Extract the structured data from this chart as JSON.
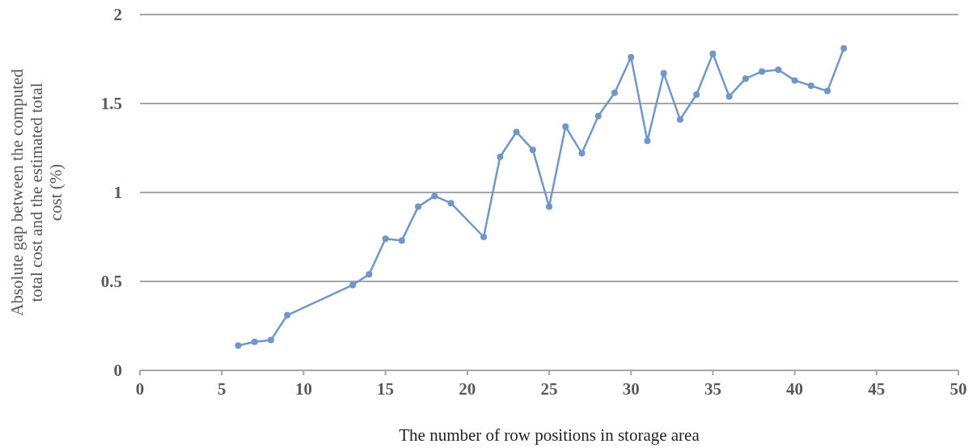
{
  "chart_data": {
    "type": "line",
    "xlabel": "The number of row positions in storage area",
    "ylabel": "Absolute gap between the computed total cost and the estimated total cost (%)",
    "series": [
      {
        "color": "#6f97c8",
        "x": [
          6,
          7,
          8,
          9,
          13,
          14,
          15,
          16,
          17,
          18,
          19,
          21,
          22,
          23,
          24,
          25,
          26,
          27,
          28,
          29,
          30,
          31,
          32,
          33,
          34,
          35,
          36,
          37,
          38,
          39,
          40,
          41,
          42,
          43
        ],
        "values": [
          0.14,
          0.16,
          0.17,
          0.31,
          0.48,
          0.54,
          0.74,
          0.73,
          0.92,
          0.98,
          0.94,
          0.75,
          1.2,
          1.34,
          1.24,
          0.92,
          1.37,
          1.22,
          1.43,
          1.56,
          1.76,
          1.29,
          1.67,
          1.41,
          1.55,
          1.78,
          1.54,
          1.64,
          1.68,
          1.69,
          1.63,
          1.6,
          1.57,
          1.81
        ]
      }
    ],
    "xlim": [
      0,
      50
    ],
    "xticks": [
      0,
      5,
      10,
      15,
      20,
      25,
      30,
      35,
      40,
      45,
      50
    ],
    "ylim": [
      0,
      2
    ],
    "yticks": [
      0,
      0.5,
      1,
      1.5,
      2
    ],
    "grid": "y",
    "marker": "circle",
    "line_style": "solid"
  }
}
